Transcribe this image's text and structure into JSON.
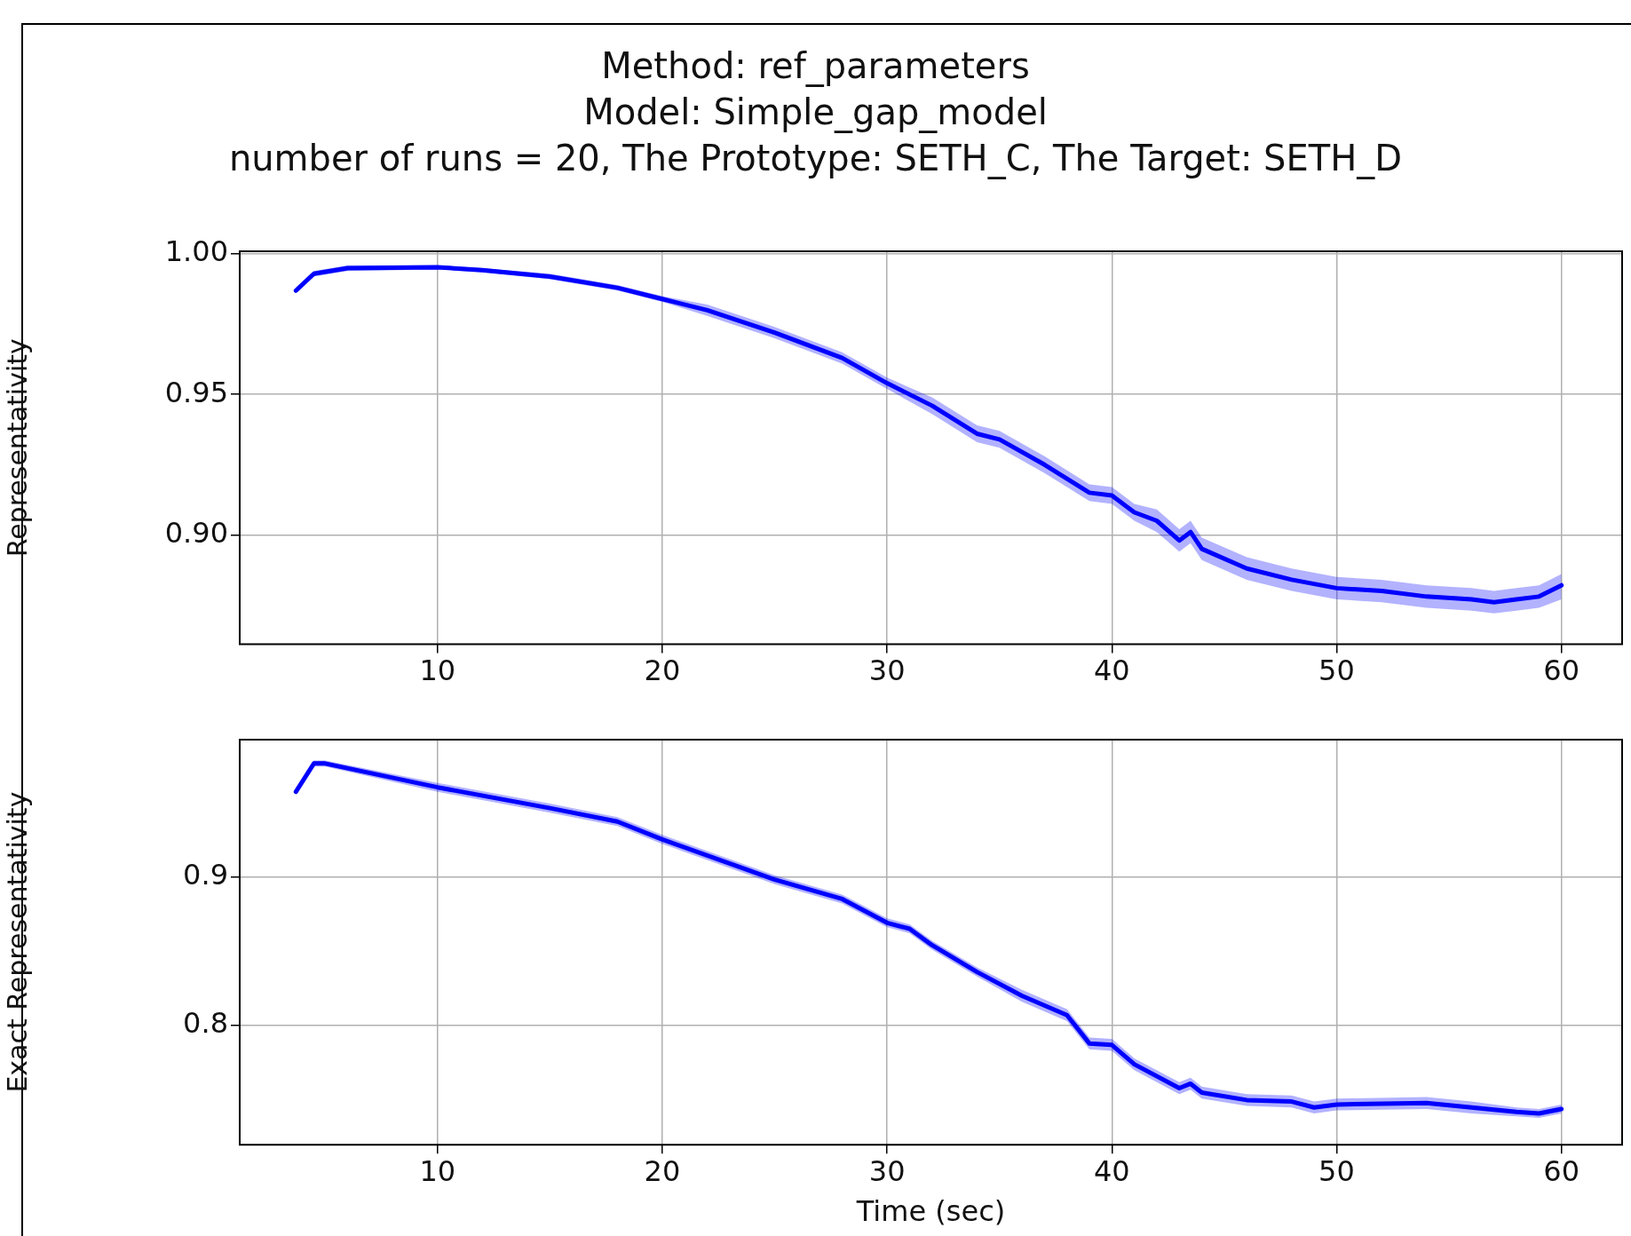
{
  "chart_data": [
    {
      "type": "line",
      "title": "Method: ref_parameters\nModel: Simple_gap_model\nnumber of runs = 20, The Prototype: SETH_C, The Target: SETH_D",
      "ylabel": "Representativity",
      "x": [
        3.7,
        4.5,
        6,
        10,
        12,
        15,
        18,
        20,
        22,
        25,
        28,
        30,
        32,
        34,
        35,
        37,
        39,
        40,
        41,
        42,
        43,
        43.5,
        44,
        46,
        48,
        50,
        52,
        54,
        56,
        57,
        58,
        59,
        60
      ],
      "series": [
        {
          "color": "#0000ff",
          "values": [
            0.987,
            0.993,
            0.995,
            0.9953,
            0.9943,
            0.992,
            0.988,
            0.984,
            0.98,
            0.972,
            0.963,
            0.954,
            0.946,
            0.936,
            0.934,
            0.925,
            0.915,
            0.914,
            0.908,
            0.905,
            0.898,
            0.901,
            0.895,
            0.888,
            0.884,
            0.881,
            0.88,
            0.878,
            0.877,
            0.876,
            0.877,
            0.878,
            0.882
          ],
          "lower": [
            0.986,
            0.992,
            0.994,
            0.9945,
            0.9935,
            0.991,
            0.987,
            0.983,
            0.978,
            0.97,
            0.961,
            0.952,
            0.943,
            0.933,
            0.931,
            0.922,
            0.912,
            0.911,
            0.905,
            0.901,
            0.894,
            0.897,
            0.891,
            0.884,
            0.88,
            0.877,
            0.876,
            0.874,
            0.873,
            0.872,
            0.873,
            0.874,
            0.877
          ],
          "upper": [
            0.988,
            0.994,
            0.996,
            0.996,
            0.995,
            0.993,
            0.989,
            0.985,
            0.982,
            0.974,
            0.965,
            0.956,
            0.949,
            0.939,
            0.937,
            0.928,
            0.918,
            0.917,
            0.911,
            0.909,
            0.902,
            0.905,
            0.899,
            0.892,
            0.888,
            0.885,
            0.884,
            0.882,
            0.881,
            0.88,
            0.881,
            0.882,
            0.886
          ]
        }
      ],
      "xlim": [
        1.2,
        62.7
      ],
      "xticks": [
        10,
        20,
        30,
        40,
        50,
        60
      ],
      "ylim": [
        0.861,
        1.001
      ],
      "yticks": [
        {
          "value": 0.9,
          "label": "0.90"
        },
        0.95,
        {
          "value": 1.0,
          "label": "1.00"
        }
      ],
      "grid": true,
      "legend": false
    },
    {
      "type": "line",
      "xlabel": "Time (sec)",
      "ylabel": "Exact Representativity",
      "x": [
        3.7,
        4.5,
        5,
        10,
        15,
        18,
        20,
        25,
        28,
        30,
        31,
        32,
        34,
        36,
        38,
        39,
        40,
        41,
        43,
        43.5,
        44,
        46,
        48,
        49,
        50,
        54,
        56,
        58,
        59,
        60
      ],
      "series": [
        {
          "color": "#0000ff",
          "values": [
            0.957,
            0.976,
            0.976,
            0.96,
            0.946,
            0.937,
            0.925,
            0.898,
            0.885,
            0.869,
            0.865,
            0.854,
            0.836,
            0.82,
            0.807,
            0.788,
            0.787,
            0.774,
            0.758,
            0.761,
            0.755,
            0.75,
            0.749,
            0.745,
            0.747,
            0.748,
            0.745,
            0.742,
            0.741,
            0.744
          ],
          "lower": [
            0.955,
            0.974,
            0.974,
            0.957,
            0.943,
            0.934,
            0.922,
            0.895,
            0.882,
            0.866,
            0.862,
            0.851,
            0.833,
            0.816,
            0.803,
            0.784,
            0.783,
            0.77,
            0.754,
            0.757,
            0.751,
            0.746,
            0.745,
            0.741,
            0.743,
            0.744,
            0.741,
            0.739,
            0.738,
            0.741
          ],
          "upper": [
            0.959,
            0.978,
            0.978,
            0.963,
            0.949,
            0.94,
            0.928,
            0.901,
            0.888,
            0.872,
            0.868,
            0.857,
            0.839,
            0.824,
            0.811,
            0.792,
            0.791,
            0.778,
            0.762,
            0.765,
            0.759,
            0.754,
            0.753,
            0.749,
            0.751,
            0.752,
            0.749,
            0.745,
            0.744,
            0.747
          ]
        }
      ],
      "xlim": [
        1.2,
        62.7
      ],
      "xticks": [
        10,
        20,
        30,
        40,
        50,
        60
      ],
      "ylim": [
        0.72,
        0.992
      ],
      "yticks": [
        0.8,
        0.9
      ],
      "grid": true,
      "legend": false
    }
  ]
}
